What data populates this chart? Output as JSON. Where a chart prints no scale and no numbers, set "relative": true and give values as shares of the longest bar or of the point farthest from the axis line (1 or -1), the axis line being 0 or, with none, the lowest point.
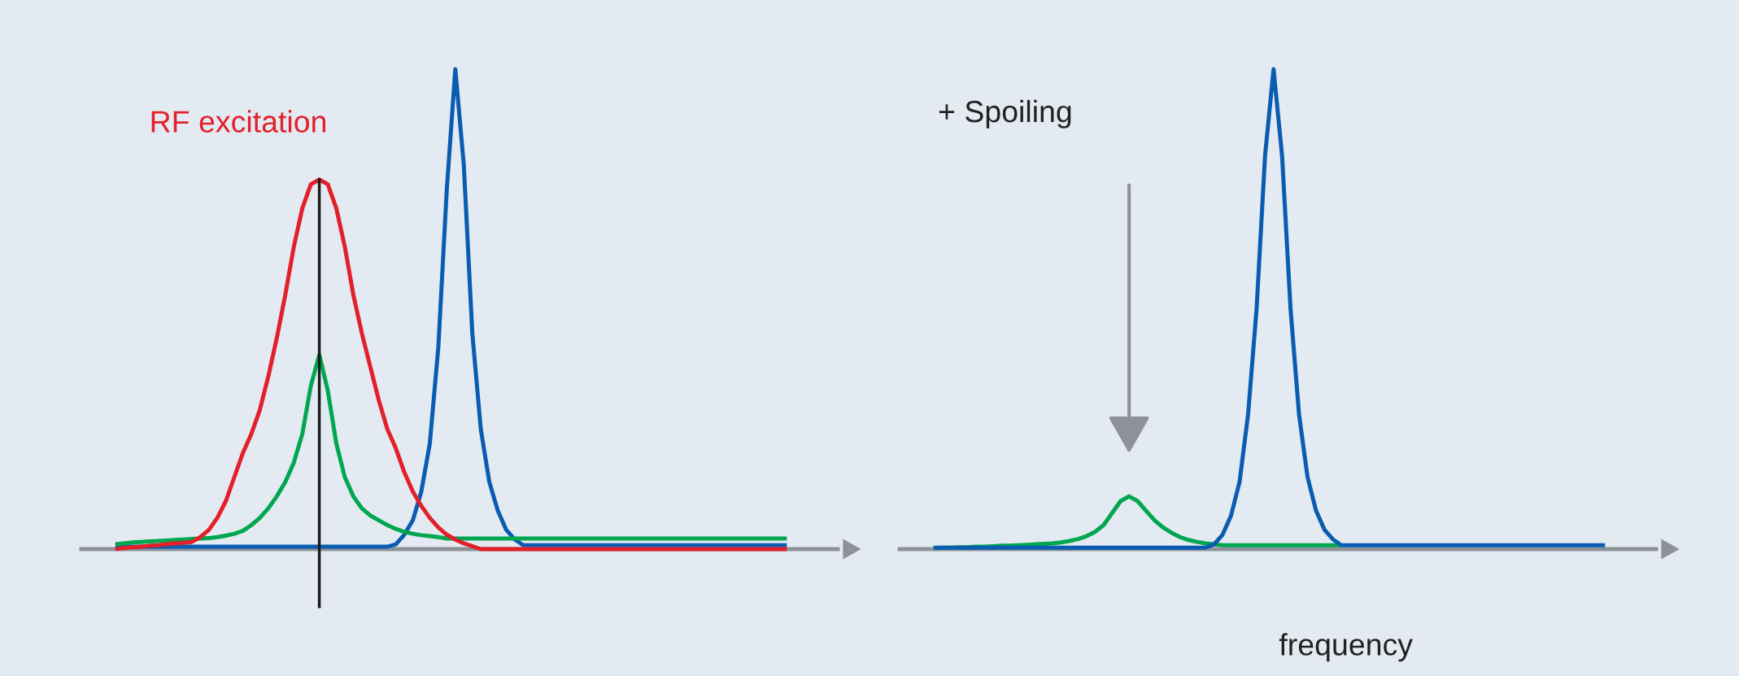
{
  "chart_data": [
    {
      "type": "line",
      "relative": true,
      "categories": [
        null,
        null,
        null,
        null,
        null,
        null,
        null,
        null,
        null,
        null,
        null,
        null,
        null,
        null,
        null,
        null,
        null,
        null,
        null,
        null,
        null,
        null,
        null,
        null,
        null,
        null,
        null,
        null,
        null,
        null,
        null,
        null,
        null,
        null,
        null,
        null,
        null,
        null,
        null,
        null,
        null,
        null,
        null,
        null,
        null,
        null,
        null,
        null,
        null,
        null,
        null,
        null,
        null,
        null,
        null,
        null,
        null,
        null,
        null,
        null,
        null,
        null,
        null,
        null,
        null,
        null,
        null,
        null,
        null,
        null,
        null,
        null,
        null,
        null,
        null,
        null,
        null,
        null,
        null,
        null
      ],
      "series": [
        {
          "color": "#0a5cb0",
          "values": [
            0.005,
            0.005,
            0.005,
            0.005,
            0.005,
            0.005,
            0.005,
            0.005,
            0.005,
            0.005,
            0.005,
            0.005,
            0.005,
            0.005,
            0.005,
            0.005,
            0.005,
            0.005,
            0.005,
            0.005,
            0.005,
            0.005,
            0.005,
            0.005,
            0.005,
            0.005,
            0.005,
            0.005,
            0.005,
            0.005,
            0.005,
            0.005,
            0.005,
            0.01,
            0.03,
            0.06,
            0.12,
            0.22,
            0.42,
            0.75,
            1.0,
            0.8,
            0.45,
            0.25,
            0.14,
            0.08,
            0.04,
            0.02,
            0.008,
            0.008,
            0.008,
            0.008,
            0.008,
            0.008,
            0.008,
            0.008,
            0.008,
            0.008,
            0.008,
            0.008,
            0.008,
            0.008,
            0.008,
            0.008,
            0.008,
            0.008,
            0.008,
            0.008,
            0.008,
            0.008,
            0.008,
            0.008,
            0.008,
            0.008,
            0.008,
            0.008,
            0.008,
            0.008,
            0.008,
            0.008
          ]
        },
        {
          "color": "#00a650",
          "values": [
            0.01,
            0.012,
            0.014,
            0.015,
            0.016,
            0.017,
            0.018,
            0.019,
            0.02,
            0.021,
            0.022,
            0.023,
            0.025,
            0.028,
            0.032,
            0.038,
            0.05,
            0.065,
            0.085,
            0.11,
            0.14,
            0.18,
            0.24,
            0.34,
            0.405,
            0.33,
            0.22,
            0.15,
            0.11,
            0.085,
            0.07,
            0.06,
            0.05,
            0.042,
            0.036,
            0.032,
            0.029,
            0.027,
            0.025,
            0.022,
            0.022,
            0.022,
            0.022,
            0.022,
            0.022,
            0.022,
            0.022,
            0.022,
            0.022,
            0.022,
            0.022,
            0.022,
            0.022,
            0.022,
            0.022,
            0.022,
            0.022,
            0.022,
            0.022,
            0.022,
            0.022,
            0.022,
            0.022,
            0.022,
            0.022,
            0.022,
            0.022,
            0.022,
            0.022,
            0.022,
            0.022,
            0.022,
            0.022,
            0.022,
            0.022,
            0.022,
            0.022,
            0.022,
            0.022,
            0.022
          ]
        },
        {
          "name": "RF excitation",
          "color": "#e3202a",
          "values": [
            0,
            0.002,
            0.004,
            0.005,
            0.007,
            0.008,
            0.01,
            0.012,
            0.013,
            0.015,
            0.025,
            0.04,
            0.065,
            0.1,
            0.15,
            0.2,
            0.24,
            0.29,
            0.36,
            0.44,
            0.53,
            0.63,
            0.71,
            0.76,
            0.77,
            0.76,
            0.71,
            0.63,
            0.53,
            0.45,
            0.38,
            0.31,
            0.25,
            0.21,
            0.16,
            0.12,
            0.09,
            0.065,
            0.045,
            0.03,
            0.02,
            0.012,
            0.006,
            0,
            0,
            0,
            0,
            0,
            0,
            0,
            0,
            0,
            0,
            0,
            0,
            0,
            0,
            0,
            0,
            0,
            0,
            0,
            0,
            0,
            0,
            0,
            0,
            0,
            0,
            0,
            0,
            0,
            0,
            0,
            0,
            0,
            0,
            0,
            0,
            0
          ]
        }
      ]
    },
    {
      "type": "line",
      "relative": true,
      "xlabel": "frequency",
      "categories": [
        null,
        null,
        null,
        null,
        null,
        null,
        null,
        null,
        null,
        null,
        null,
        null,
        null,
        null,
        null,
        null,
        null,
        null,
        null,
        null,
        null,
        null,
        null,
        null,
        null,
        null,
        null,
        null,
        null,
        null,
        null,
        null,
        null,
        null,
        null,
        null,
        null,
        null,
        null,
        null,
        null,
        null,
        null,
        null,
        null,
        null,
        null,
        null,
        null,
        null,
        null,
        null,
        null,
        null,
        null,
        null,
        null,
        null,
        null,
        null,
        null,
        null,
        null,
        null,
        null,
        null,
        null,
        null,
        null,
        null,
        null,
        null,
        null,
        null,
        null,
        null,
        null,
        null,
        null,
        null
      ],
      "series": [
        {
          "color": "#00a650",
          "values": [
            0.002,
            0.003,
            0.003,
            0.004,
            0.004,
            0.005,
            0.005,
            0.006,
            0.007,
            0.007,
            0.008,
            0.009,
            0.01,
            0.011,
            0.012,
            0.014,
            0.017,
            0.021,
            0.027,
            0.036,
            0.05,
            0.075,
            0.1,
            0.11,
            0.1,
            0.08,
            0.06,
            0.045,
            0.034,
            0.025,
            0.019,
            0.015,
            0.012,
            0.01,
            0.008,
            0.008,
            0.008,
            0.008,
            0.008,
            0.008,
            0.008,
            0.008,
            0.008,
            0.008,
            0.008,
            0.008,
            0.008,
            0.008,
            0.008,
            null,
            null,
            null,
            null,
            null,
            null,
            null,
            null,
            null,
            null,
            null,
            null,
            null,
            null,
            null,
            null,
            null,
            null,
            null,
            null,
            null,
            null,
            null,
            null,
            null,
            null,
            null,
            null,
            null,
            null,
            null
          ]
        },
        {
          "color": "#0a5cb0",
          "values": [
            0.003,
            0.003,
            0.003,
            0.003,
            0.003,
            0.003,
            0.003,
            0.003,
            0.003,
            0.003,
            0.003,
            0.003,
            0.003,
            0.003,
            0.003,
            0.003,
            0.003,
            0.003,
            0.003,
            0.003,
            0.003,
            0.003,
            0.003,
            0.003,
            0.003,
            0.003,
            0.003,
            0.003,
            0.003,
            0.003,
            0.003,
            0.003,
            0.003,
            0.01,
            0.03,
            0.07,
            0.14,
            0.28,
            0.5,
            0.82,
            1.0,
            0.82,
            0.5,
            0.28,
            0.15,
            0.08,
            0.04,
            0.02,
            0.008,
            0.008,
            0.008,
            0.008,
            0.008,
            0.008,
            0.008,
            0.008,
            0.008,
            0.008,
            0.008,
            0.008,
            0.008,
            0.008,
            0.008,
            0.008,
            0.008,
            0.008,
            0.008,
            0.008,
            0.008,
            0.008,
            0.008,
            0.008,
            0.008,
            0.008,
            0.008,
            0.008,
            0.008,
            0.008,
            0.008,
            0.008
          ]
        }
      ],
      "annotations": [
        "+ Spoiling"
      ]
    }
  ]
}
